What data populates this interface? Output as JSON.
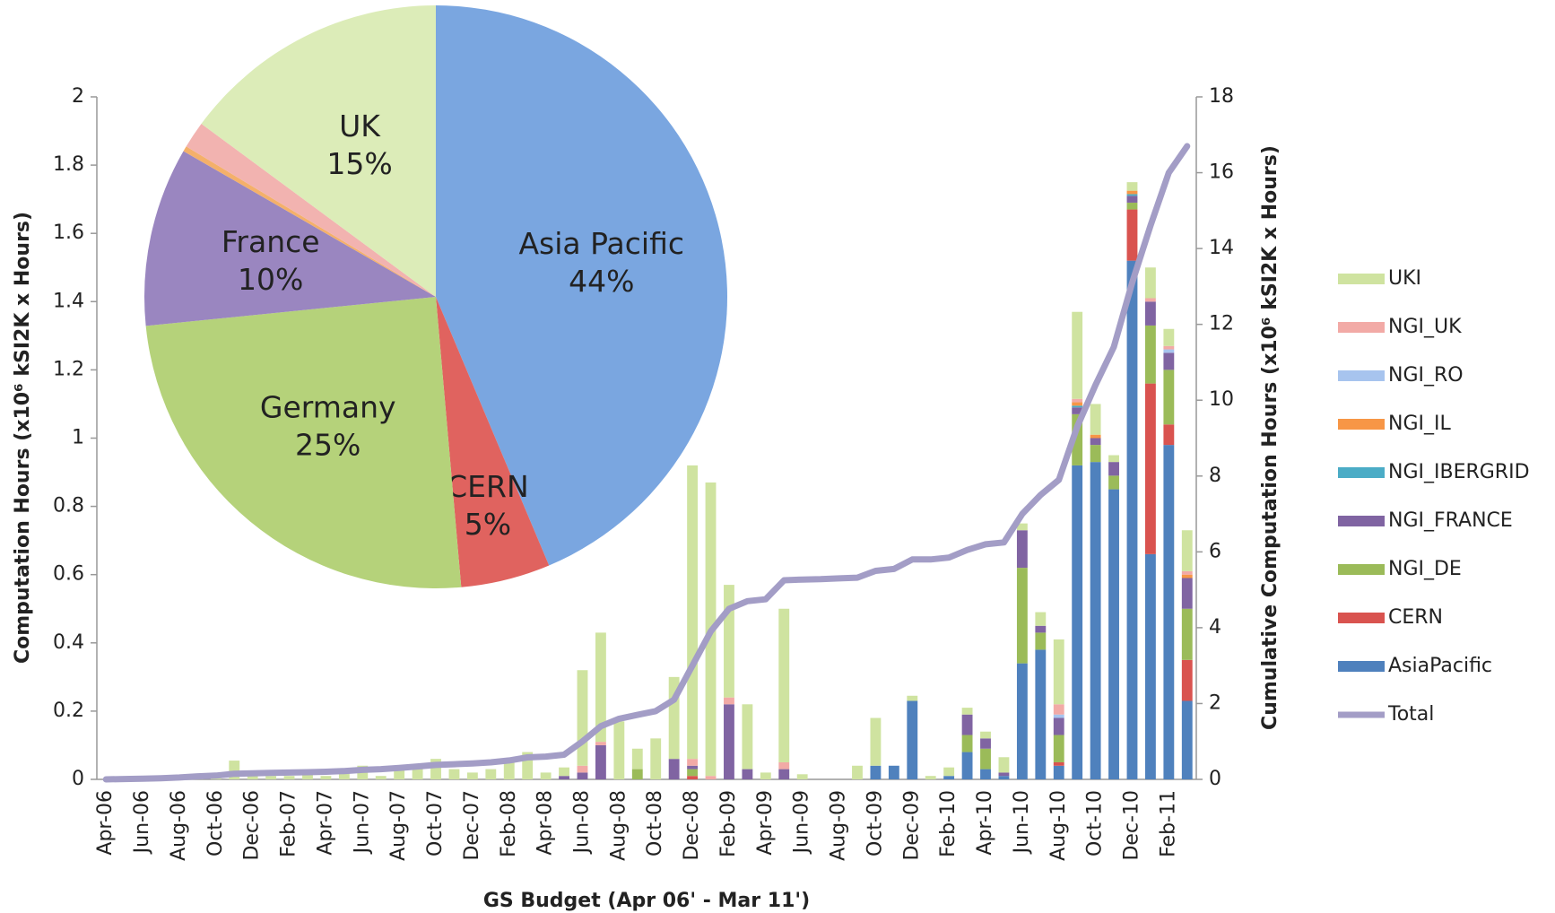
{
  "chart_data": [
    {
      "type": "bar",
      "stacked": true,
      "ylabel": "Computation Hours (x10⁶ kSI2K x Hours)",
      "y2label": "Cumulative Computation Hours (x10⁶ kSI2K x Hours)",
      "xlabel": "GS Budget (Apr 06' - Mar 11')",
      "categories": [
        "Apr-06",
        null,
        "Jun-06",
        null,
        "Aug-06",
        null,
        "Oct-06",
        null,
        "Dec-06",
        null,
        "Feb-07",
        null,
        "Apr-07",
        null,
        "Jun-07",
        null,
        "Aug-07",
        null,
        "Oct-07",
        null,
        "Dec-07",
        null,
        "Feb-08",
        null,
        "Apr-08",
        null,
        "Jun-08",
        null,
        "Aug-08",
        null,
        "Oct-08",
        null,
        "Dec-08",
        null,
        "Feb-09",
        null,
        "Apr-09",
        null,
        "Jun-09",
        null,
        "Aug-09",
        null,
        "Oct-09",
        null,
        "Dec-09",
        null,
        "Feb-10",
        null,
        "Apr-10",
        null,
        "Jun-10",
        null,
        "Aug-10",
        null,
        "Oct-10",
        null,
        "Dec-10",
        null,
        "Feb-11",
        null
      ],
      "ylim": [
        0,
        2
      ],
      "yticks": [
        0,
        0.2,
        0.4,
        0.6,
        0.8,
        1,
        1.2,
        1.4,
        1.6,
        1.8,
        2
      ],
      "y2lim": [
        0,
        18
      ],
      "y2ticks": [
        0,
        2,
        4,
        6,
        8,
        10,
        12,
        14,
        16,
        18
      ],
      "legend": "right",
      "series": [
        {
          "name": "AsiaPacific",
          "color": "#4f81bd",
          "values": [
            0,
            0,
            0,
            0,
            0,
            0,
            0,
            0,
            0,
            0,
            0,
            0,
            0,
            0,
            0,
            0,
            0,
            0,
            0,
            0,
            0,
            0,
            0,
            0,
            0,
            0,
            0,
            0,
            0,
            0,
            0,
            0,
            0,
            0,
            0,
            0,
            0,
            0,
            0,
            0,
            0,
            0,
            0.04,
            0.04,
            0.23,
            0,
            0.01,
            0.08,
            0.03,
            0.01,
            0.34,
            0.38,
            0.04,
            0.92,
            0.93,
            0.85,
            1.52,
            0.66,
            0.98,
            0.23
          ]
        },
        {
          "name": "CERN",
          "color": "#d9534f",
          "values": [
            0,
            0,
            0,
            0,
            0,
            0,
            0,
            0,
            0,
            0,
            0,
            0,
            0,
            0,
            0,
            0,
            0,
            0,
            0,
            0,
            0,
            0,
            0,
            0,
            0,
            0,
            0,
            0,
            0,
            0,
            0,
            0,
            0.01,
            0,
            0,
            0,
            0,
            0,
            0,
            0,
            0,
            0,
            0,
            0,
            0,
            0,
            0,
            0,
            0,
            0,
            0,
            0,
            0.01,
            0,
            0,
            0,
            0.15,
            0.5,
            0.06,
            0.12
          ]
        },
        {
          "name": "NGI_DE",
          "color": "#9bbb59",
          "values": [
            0,
            0,
            0,
            0,
            0,
            0,
            0,
            0,
            0,
            0,
            0,
            0,
            0,
            0,
            0,
            0,
            0,
            0,
            0,
            0,
            0,
            0,
            0,
            0,
            0,
            0,
            0,
            0,
            0,
            0.03,
            0,
            0,
            0.02,
            0,
            0,
            0,
            0,
            0,
            0,
            0,
            0,
            0,
            0,
            0,
            0,
            0,
            0,
            0.05,
            0.06,
            0,
            0.28,
            0.05,
            0.08,
            0.15,
            0.05,
            0.04,
            0.02,
            0.17,
            0.16,
            0.15
          ]
        },
        {
          "name": "NGI_FRANCE",
          "color": "#8064a2",
          "values": [
            0,
            0,
            0,
            0,
            0,
            0,
            0,
            0,
            0,
            0,
            0,
            0,
            0,
            0,
            0,
            0,
            0,
            0,
            0,
            0,
            0,
            0,
            0,
            0,
            0,
            0.01,
            0.02,
            0.1,
            0,
            0,
            0,
            0.06,
            0.01,
            0,
            0.22,
            0.03,
            0,
            0.03,
            0,
            0,
            0,
            0,
            0,
            0,
            0,
            0,
            0,
            0.06,
            0.03,
            0.01,
            0.11,
            0.02,
            0.05,
            0.02,
            0.02,
            0.04,
            0.02,
            0.07,
            0.05,
            0.09
          ]
        },
        {
          "name": "NGI_IBERGRID",
          "color": "#4bacc6",
          "values": [
            0,
            0,
            0,
            0,
            0,
            0,
            0,
            0,
            0,
            0,
            0,
            0,
            0,
            0,
            0,
            0,
            0,
            0,
            0,
            0,
            0,
            0,
            0,
            0,
            0,
            0,
            0,
            0,
            0,
            0,
            0,
            0,
            0,
            0,
            0,
            0,
            0,
            0,
            0,
            0,
            0,
            0,
            0,
            0,
            0,
            0,
            0,
            0,
            0,
            0,
            0,
            0,
            0,
            0.005,
            0,
            0,
            0.005,
            0,
            0,
            0
          ]
        },
        {
          "name": "NGI_IL",
          "color": "#f79646",
          "values": [
            0,
            0,
            0,
            0,
            0,
            0,
            0,
            0,
            0,
            0,
            0,
            0,
            0,
            0,
            0,
            0,
            0,
            0,
            0,
            0,
            0,
            0,
            0,
            0,
            0,
            0,
            0,
            0,
            0,
            0,
            0,
            0,
            0,
            0,
            0,
            0,
            0,
            0,
            0,
            0,
            0,
            0,
            0,
            0,
            0,
            0,
            0,
            0,
            0,
            0,
            0,
            0,
            0,
            0.01,
            0.01,
            0,
            0.01,
            0,
            0,
            0.01
          ]
        },
        {
          "name": "NGI_RO",
          "color": "#a7c4ee",
          "values": [
            0,
            0,
            0,
            0,
            0,
            0,
            0,
            0,
            0,
            0,
            0,
            0,
            0,
            0,
            0,
            0,
            0,
            0,
            0,
            0,
            0,
            0,
            0,
            0,
            0,
            0,
            0,
            0,
            0,
            0,
            0,
            0,
            0,
            0,
            0,
            0,
            0,
            0,
            0,
            0,
            0,
            0,
            0,
            0,
            0,
            0,
            0,
            0,
            0,
            0,
            0,
            0,
            0.01,
            0,
            0,
            0,
            0,
            0,
            0.01,
            0
          ]
        },
        {
          "name": "NGI_UK",
          "color": "#f2aaa6",
          "values": [
            0,
            0,
            0,
            0,
            0,
            0,
            0,
            0,
            0,
            0,
            0,
            0,
            0,
            0,
            0,
            0,
            0,
            0,
            0,
            0,
            0,
            0,
            0,
            0,
            0,
            0,
            0.02,
            0.01,
            0,
            0,
            0,
            0,
            0.02,
            0.01,
            0.02,
            0,
            0,
            0.02,
            0,
            0,
            0,
            0,
            0,
            0,
            0,
            0,
            0,
            0,
            0,
            0,
            0,
            0,
            0.03,
            0.01,
            0,
            0,
            0,
            0.01,
            0.01,
            0.01
          ]
        },
        {
          "name": "UKI",
          "color": "#cfe3a0",
          "values": [
            0,
            0,
            0,
            0,
            0.005,
            0.01,
            0.01,
            0.055,
            0.01,
            0.01,
            0.01,
            0.02,
            0.01,
            0.03,
            0.04,
            0.01,
            0.03,
            0.045,
            0.06,
            0.03,
            0.02,
            0.03,
            0.05,
            0.08,
            0.02,
            0.025,
            0.28,
            0.32,
            0.17,
            0.06,
            0.12,
            0.24,
            0.86,
            0.86,
            0.33,
            0.19,
            0.02,
            0.45,
            0.015,
            0,
            0,
            0.04,
            0.14,
            0,
            0.015,
            0.01,
            0.025,
            0.02,
            0.02,
            0.045,
            0.02,
            0.04,
            0.19,
            0.255,
            0.09,
            0.02,
            0.025,
            0.09,
            0.05,
            0.12
          ]
        },
        {
          "name": "Total",
          "color": "#a39dc6",
          "type": "line",
          "axis": "y2",
          "values": [
            0,
            0.01,
            0.02,
            0.03,
            0.05,
            0.08,
            0.1,
            0.15,
            0.16,
            0.17,
            0.18,
            0.19,
            0.2,
            0.22,
            0.25,
            0.27,
            0.3,
            0.34,
            0.38,
            0.4,
            0.42,
            0.45,
            0.5,
            0.58,
            0.6,
            0.65,
            1.0,
            1.4,
            1.6,
            1.7,
            1.8,
            2.1,
            3.0,
            3.9,
            4.5,
            4.7,
            4.75,
            5.25,
            5.27,
            5.28,
            5.3,
            5.32,
            5.5,
            5.55,
            5.8,
            5.8,
            5.85,
            6.05,
            6.2,
            6.25,
            7.0,
            7.5,
            7.9,
            9.3,
            10.4,
            11.4,
            13.1,
            14.6,
            16.0,
            16.7
          ]
        }
      ]
    },
    {
      "type": "pie",
      "categories": [
        "Asia Pacific",
        "CERN",
        "Germany",
        "France",
        null,
        null,
        "UK"
      ],
      "values": [
        44,
        5,
        25,
        10,
        0.3,
        1.5,
        15
      ],
      "value_labels": [
        "44%",
        "5%",
        "25%",
        "10%",
        null,
        null,
        "15%"
      ],
      "colors": [
        "#7aa6e0",
        "#e0635f",
        "#b5d27a",
        "#9a86c0",
        "#f4b06a",
        "#f2b3b0",
        "#dcecb8"
      ]
    }
  ]
}
